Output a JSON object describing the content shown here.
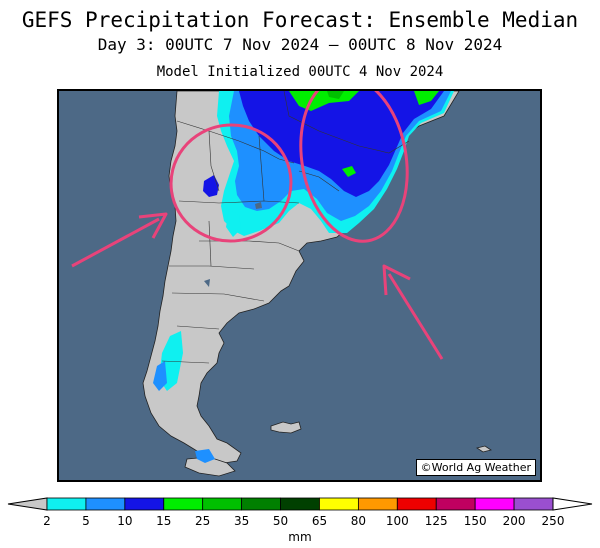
{
  "title": "GEFS Precipitation Forecast: Ensemble Median",
  "subtitle": "Day 3: 00UTC 7 Nov 2024 — 00UTC 8 Nov 2024",
  "model_init": "Model Initialized 00UTC 4 Nov 2024",
  "credit": "©World Ag Weather",
  "colorbar": {
    "unit": "mm",
    "ticks": [
      "2",
      "5",
      "10",
      "15",
      "25",
      "35",
      "50",
      "65",
      "80",
      "100",
      "125",
      "150",
      "200",
      "250"
    ],
    "colors": [
      "#0ff0f0",
      "#1e90ff",
      "#1414e6",
      "#00ee00",
      "#00c000",
      "#008000",
      "#004000",
      "#ffff00",
      "#ff9900",
      "#ee0000",
      "#c00060",
      "#ff00ff",
      "#9a4fd0"
    ],
    "below_color": "#c8c8c8",
    "above_color": "#ffffff"
  },
  "map": {
    "ocean_color": "#4d6986",
    "land_color": "#c8c8c8",
    "annotation_color": "#e8437a"
  }
}
